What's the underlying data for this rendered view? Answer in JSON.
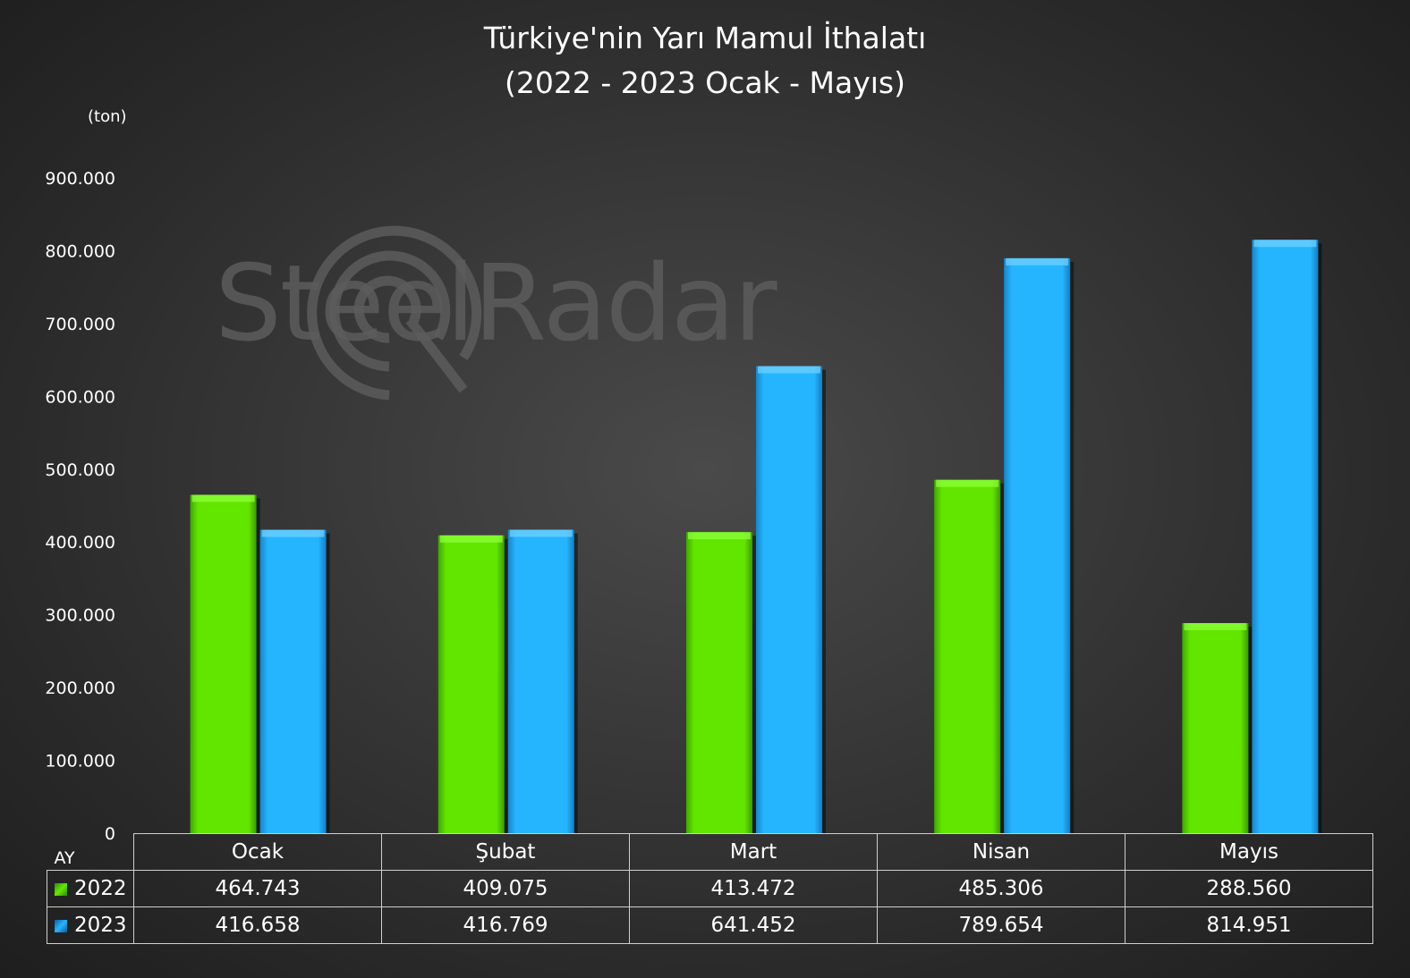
{
  "chart_data": {
    "type": "bar",
    "title": [
      "Türkiye'nin Yarı Mamul İthalatı",
      "(2022 - 2023 Ocak - Mayıs)"
    ],
    "unit_label": "(ton)",
    "xlabel": "AY",
    "categories": [
      "Ocak",
      "Şubat",
      "Mart",
      "Nisan",
      "Mayıs"
    ],
    "ylim": [
      0,
      900000
    ],
    "yticks": [
      "0",
      "100.000",
      "200.000",
      "300.000",
      "400.000",
      "500.000",
      "600.000",
      "700.000",
      "800.000",
      "900.000"
    ],
    "series": [
      {
        "name": "2022",
        "values": [
          464743,
          409075,
          413472,
          485306,
          288560
        ],
        "labels": [
          "464.743",
          "409.075",
          "413.472",
          "485.306",
          "288.560"
        ],
        "color": "#5fe300"
      },
      {
        "name": "2023",
        "values": [
          416658,
          416769,
          641452,
          789654,
          814951
        ],
        "labels": [
          "416.658",
          "416.769",
          "641.452",
          "789.654",
          "814.951"
        ],
        "color": "#22b3ff"
      }
    ],
    "grid": false,
    "legend": "data-table"
  },
  "watermark": "SteelRadar"
}
